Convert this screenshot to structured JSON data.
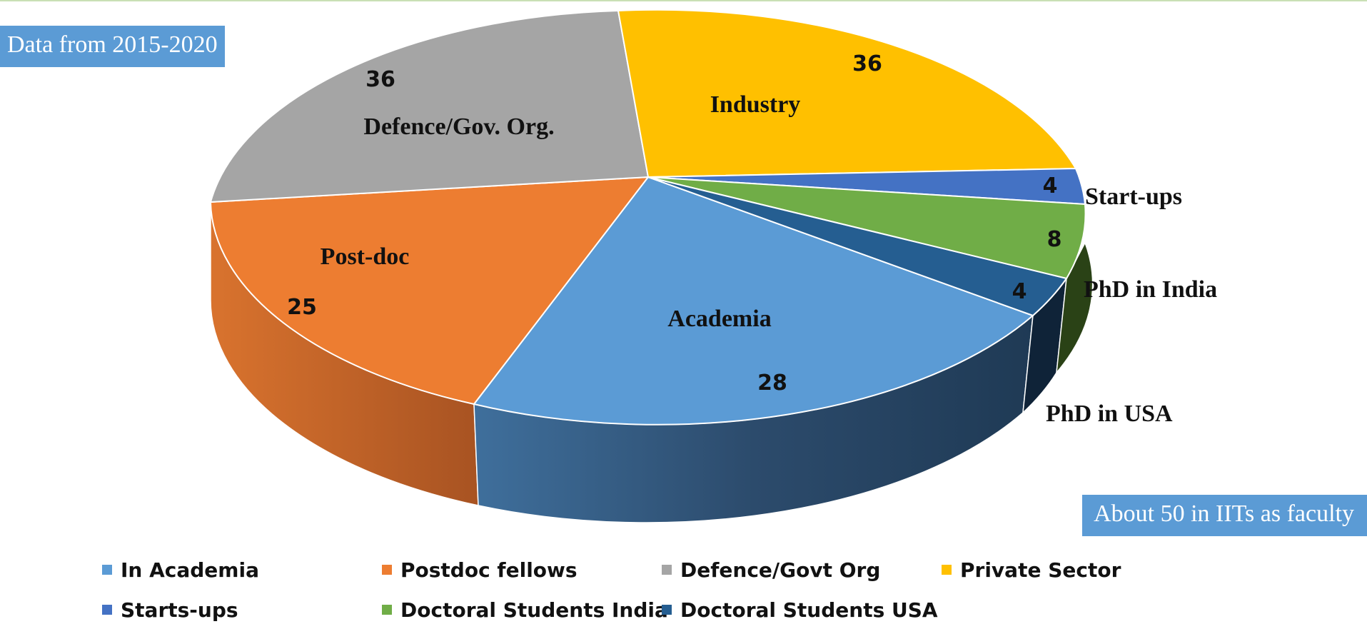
{
  "annotations": {
    "period": "Data from 2015-2020",
    "faculty_note": "About 50 in IITs as faculty"
  },
  "chart_data": {
    "type": "pie",
    "title": "",
    "slices": [
      {
        "key": "academia",
        "legend": "In Academia",
        "label": "Academia",
        "value": 28,
        "color": "#5b9bd5"
      },
      {
        "key": "postdoc",
        "legend": "Postdoc fellows",
        "label": "Post-doc",
        "value": 25,
        "color": "#ed7d31"
      },
      {
        "key": "defence",
        "legend": "Defence/Govt Org",
        "label": "Defence/Gov. Org.",
        "value": 36,
        "color": "#a5a5a5"
      },
      {
        "key": "industry",
        "legend": "Private Sector",
        "label": "Industry",
        "value": 36,
        "color": "#ffc000"
      },
      {
        "key": "startups",
        "legend": "Starts-ups",
        "label": "Start-ups",
        "value": 4,
        "color": "#4472c4"
      },
      {
        "key": "phd_india",
        "legend": "Doctoral Students India",
        "label": "PhD in India",
        "value": 8,
        "color": "#70ad47"
      },
      {
        "key": "phd_usa",
        "legend": "Doctoral Students USA",
        "label": "PhD in USA",
        "value": 4,
        "color": "#255e91"
      }
    ],
    "legend_position": "bottom"
  }
}
